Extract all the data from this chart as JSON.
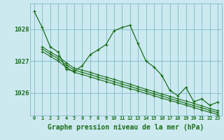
{
  "title": "Graphe pression niveau de la mer (hPa)",
  "bg_color": "#cce9f0",
  "grid_color": "#88bfcc",
  "line_color": "#1a6e1a",
  "xlim": [
    -0.5,
    23.5
  ],
  "ylim": [
    1025.3,
    1028.8
  ],
  "yticks": [
    1026,
    1027,
    1028
  ],
  "xticks": [
    0,
    1,
    2,
    3,
    4,
    5,
    6,
    7,
    8,
    9,
    10,
    11,
    12,
    13,
    14,
    15,
    16,
    17,
    18,
    19,
    20,
    21,
    22,
    23
  ],
  "series_main_x": [
    0,
    1,
    2,
    3,
    4,
    5,
    6,
    7,
    8,
    9,
    10,
    11,
    12,
    13,
    14,
    15,
    16,
    17,
    18,
    19,
    20,
    21,
    22,
    23
  ],
  "series_main_y": [
    1028.55,
    1028.05,
    1027.45,
    1027.28,
    1026.75,
    1026.68,
    1026.85,
    1027.2,
    1027.35,
    1027.52,
    1027.95,
    1028.05,
    1028.12,
    1027.55,
    1027.0,
    1026.82,
    1026.55,
    1026.08,
    1025.92,
    1026.18,
    1025.73,
    1025.82,
    1025.62,
    1025.72
  ],
  "series2_x": [
    1,
    2,
    3,
    4,
    5,
    6,
    7,
    8,
    9,
    10,
    11,
    12,
    13,
    14,
    15,
    16,
    17,
    18,
    19,
    20,
    21,
    22,
    23
  ],
  "series2_y": [
    1027.45,
    1027.28,
    1027.15,
    1026.95,
    1026.78,
    1026.72,
    1026.65,
    1026.57,
    1026.5,
    1026.43,
    1026.35,
    1026.28,
    1026.2,
    1026.12,
    1026.05,
    1025.97,
    1025.9,
    1025.82,
    1025.75,
    1025.68,
    1025.6,
    1025.52,
    1025.45
  ],
  "series3_x": [
    1,
    2,
    3,
    4,
    5,
    6,
    7,
    8,
    9,
    10,
    11,
    12,
    13,
    14,
    15,
    16,
    17,
    18,
    19,
    20,
    21,
    22,
    23
  ],
  "series3_y": [
    1027.38,
    1027.22,
    1027.08,
    1026.88,
    1026.72,
    1026.65,
    1026.58,
    1026.5,
    1026.43,
    1026.36,
    1026.28,
    1026.21,
    1026.13,
    1026.06,
    1025.98,
    1025.91,
    1025.83,
    1025.76,
    1025.68,
    1025.61,
    1025.54,
    1025.46,
    1025.39
  ],
  "series4_x": [
    1,
    2,
    3,
    4,
    5,
    6,
    7,
    8,
    9,
    10,
    11,
    12,
    13,
    14,
    15,
    16,
    17,
    18,
    19,
    20,
    21,
    22,
    23
  ],
  "series4_y": [
    1027.3,
    1027.15,
    1027.0,
    1026.81,
    1026.65,
    1026.58,
    1026.51,
    1026.43,
    1026.36,
    1026.29,
    1026.21,
    1026.14,
    1026.07,
    1025.99,
    1025.92,
    1025.84,
    1025.77,
    1025.7,
    1025.62,
    1025.55,
    1025.47,
    1025.4,
    1025.33
  ]
}
